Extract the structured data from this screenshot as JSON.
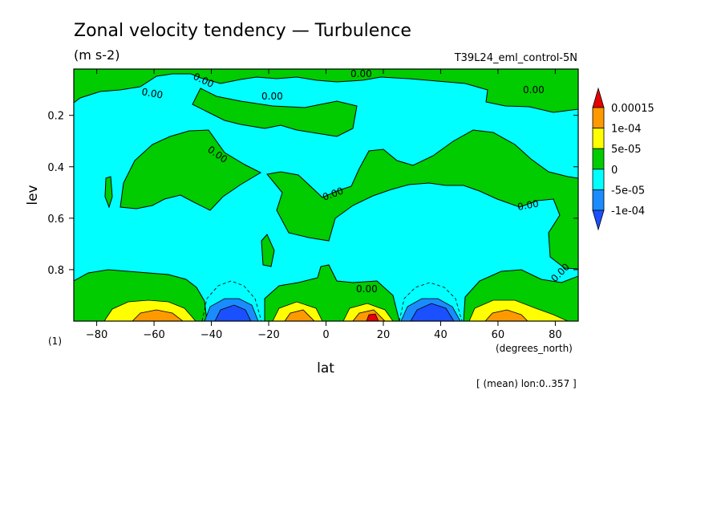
{
  "chart_data": {
    "type": "heatmap",
    "title": "Zonal velocity tendency — Turbulence",
    "units": "(m s-2)",
    "run_name": "T39L24_eml_control-5N",
    "xlabel": "lat",
    "x_units": "(degrees_north)",
    "ylabel": "lev",
    "y_units": "(1)",
    "averaging_note": "[ (mean) lon:0..357 ]",
    "xlim": [
      -88,
      88
    ],
    "ylim": [
      1.0,
      0.02
    ],
    "x_ticks": [
      -80,
      -60,
      -40,
      -20,
      0,
      20,
      40,
      60,
      80
    ],
    "x_tick_labels": [
      "−80",
      "−60",
      "−40",
      "−20",
      "0",
      "20",
      "40",
      "60",
      "80"
    ],
    "y_ticks": [
      0.2,
      0.4,
      0.6,
      0.8
    ],
    "y_tick_labels": [
      "0.2",
      "0.4",
      "0.6",
      "0.8"
    ],
    "grid": false,
    "legend_position": "right",
    "contour_level_labels": [
      "0.00",
      "0.00",
      "0.00",
      "0.00",
      "0.00",
      "0.00",
      "0.00",
      "0.00",
      "0.00",
      "0.00"
    ],
    "colorbar": {
      "tick_labels": [
        "0.00015",
        "1e-04",
        "5e-05",
        "0",
        "-5e-05",
        "-1e-04"
      ],
      "bins": [
        {
          "range": "> 0.00015",
          "color": "#e60000"
        },
        {
          "range": "1e-04 to 0.00015",
          "color": "#ff9900"
        },
        {
          "range": "5e-05 to 1e-04",
          "color": "#ffff00"
        },
        {
          "range": "0 to 5e-05",
          "color": "#00cc00"
        },
        {
          "range": "-5e-05 to 0",
          "color": "#00ffff"
        },
        {
          "range": "-1e-04 to -5e-05",
          "color": "#1a8cff"
        },
        {
          "range": "< -1e-04",
          "color": "#1a50ff"
        }
      ]
    },
    "features": [
      {
        "sign": "positive",
        "lat_range": [
          -88,
          -42
        ],
        "lev_range": [
          0.85,
          1.0
        ],
        "peak_lat": -55,
        "peak_bin": "1e-04 to 0.00015"
      },
      {
        "sign": "negative",
        "lat_range": [
          -45,
          -22
        ],
        "lev_range": [
          0.88,
          1.0
        ],
        "peak_lat": -34,
        "peak_bin": "< -1e-04"
      },
      {
        "sign": "positive",
        "lat_range": [
          -24,
          4
        ],
        "lev_range": [
          0.86,
          1.0
        ],
        "peak_lat": -10,
        "peak_bin": "1e-04 to 0.00015"
      },
      {
        "sign": "positive",
        "lat_range": [
          6,
          28
        ],
        "lev_range": [
          0.85,
          1.0
        ],
        "peak_lat": 16,
        "peak_bin": "> 0.00015"
      },
      {
        "sign": "negative",
        "lat_range": [
          28,
          50
        ],
        "lev_range": [
          0.88,
          1.0
        ],
        "peak_lat": 38,
        "peak_bin": "< -1e-04"
      },
      {
        "sign": "positive",
        "lat_range": [
          48,
          88
        ],
        "lev_range": [
          0.82,
          1.0
        ],
        "peak_lat": 62,
        "peak_bin": "1e-04 to 0.00015"
      },
      {
        "sign": "positive",
        "lat_range": [
          -80,
          85
        ],
        "lev_range": [
          0.02,
          0.3
        ],
        "peak_bin": "0 to 5e-05"
      },
      {
        "sign": "positive",
        "lat_range": [
          -70,
          -25
        ],
        "lev_range": [
          0.3,
          0.6
        ],
        "peak_bin": "0 to 5e-05"
      },
      {
        "sign": "positive",
        "lat_range": [
          -15,
          85
        ],
        "lev_range": [
          0.3,
          0.55
        ],
        "peak_bin": "0 to 5e-05"
      }
    ]
  }
}
